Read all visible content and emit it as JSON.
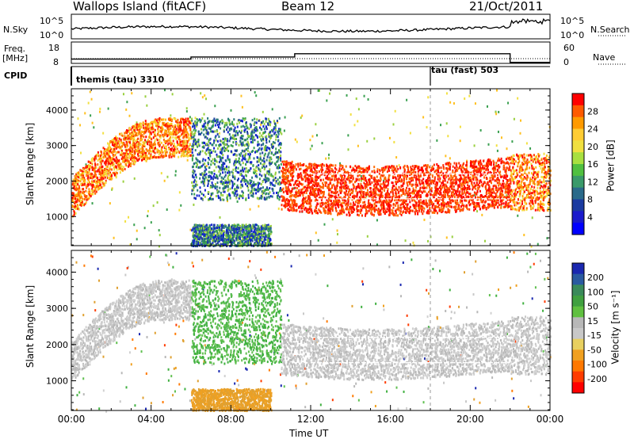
{
  "header": {
    "station": "Wallops Island (fitACF)",
    "beam": "Beam 12",
    "date": "21/Oct/2011"
  },
  "strips": {
    "nsky_label": "N.Sky",
    "nsky_ticks": [
      "10^5",
      "10^0"
    ],
    "nsearch_label": "N.Search",
    "nsearch_ticks": [
      "10^5",
      "10^0"
    ],
    "freq_label": "Freq.",
    "freq_unit": "[MHz]",
    "freq_ticks": [
      "18",
      "8"
    ],
    "nave_label": "Nave",
    "nave_ticks": [
      "60",
      "0"
    ],
    "cpid_label": "CPID",
    "cpid_events": [
      {
        "time": "00:00",
        "label": "themis (tau) 3310"
      },
      {
        "time": "18:00",
        "label": "tau (fast) 503"
      }
    ],
    "freq_steps_mhz": [
      [
        0.0,
        10.0
      ],
      [
        6.0,
        11.0
      ],
      [
        11.2,
        12.5
      ],
      [
        22.0,
        8.5
      ]
    ],
    "nave_steps": [
      [
        0.0,
        10
      ],
      [
        22.0,
        10
      ]
    ]
  },
  "panels": {
    "power": {
      "ylabel": "Slant Range [km]",
      "colorbar_title": "Power [dB]",
      "colorbar_ticks": [
        "28",
        "24",
        "20",
        "16",
        "12",
        "8",
        "4"
      ],
      "colorbar_colors": [
        "#ff0000",
        "#ff5a00",
        "#ff9a00",
        "#ffcc33",
        "#f0e040",
        "#a8e040",
        "#50c040",
        "#3a9a6a",
        "#2a6a8a",
        "#1a3aa0",
        "#1a1acc",
        "#0000ff"
      ]
    },
    "velocity": {
      "ylabel": "Slant Range [km]",
      "colorbar_title": "Velocity [m s⁻¹]",
      "colorbar_ticks": [
        "200",
        "100",
        "50",
        "15",
        "-15",
        "-50",
        "-100",
        "-200"
      ],
      "colorbar_colors": [
        "#1a28b0",
        "#2a5aa0",
        "#3a8a5a",
        "#40a040",
        "#60c040",
        "#b8b8b8",
        "#c8c8c8",
        "#e8d060",
        "#f0a020",
        "#ff7800",
        "#ff3c00",
        "#ff0000"
      ]
    }
  },
  "xaxis": {
    "label": "Time UT",
    "ticks": [
      "00:00",
      "04:00",
      "08:00",
      "12:00",
      "16:00",
      "20:00",
      "00:00"
    ]
  },
  "chart_data": {
    "type": "heatmap",
    "title": "Wallops Island (fitACF) Beam 12 21/Oct/2011",
    "xlabel": "Time UT",
    "ylabel": "Slant Range [km]",
    "x_range_hours": [
      0,
      24
    ],
    "ylim_km": [
      180,
      4600
    ],
    "ytick_values": [
      1000,
      2000,
      3000,
      4000
    ],
    "xtick_values": [
      0,
      4,
      8,
      12,
      16,
      20,
      24
    ],
    "series": [
      {
        "name": "Power [dB]",
        "color_range": [
          0,
          30
        ],
        "regions": [
          {
            "t": [
              0.0,
              6.0
            ],
            "r": [
              1300,
              3900
            ],
            "v": 22
          },
          {
            "t": [
              6.0,
              10.5
            ],
            "r": [
              1500,
              3800
            ],
            "v": 12
          },
          {
            "t": [
              10.5,
              22.0
            ],
            "r": [
              1150,
              2500
            ],
            "v": 26
          },
          {
            "t": [
              22.0,
              24.0
            ],
            "r": [
              1200,
              2800
            ],
            "v": 18
          },
          {
            "t": [
              6.0,
              10.0
            ],
            "r": [
              200,
              800
            ],
            "v": 8
          }
        ]
      },
      {
        "name": "Velocity [m s⁻¹]",
        "color_range": [
          -200,
          200
        ],
        "regions": [
          {
            "t": [
              0.0,
              6.0
            ],
            "r": [
              1300,
              3900
            ],
            "v": -30
          },
          {
            "t": [
              6.0,
              10.5
            ],
            "r": [
              1500,
              3800
            ],
            "v": 60
          },
          {
            "t": [
              10.5,
              22.0
            ],
            "r": [
              1150,
              2500
            ],
            "v": 0
          },
          {
            "t": [
              22.0,
              24.0
            ],
            "r": [
              1200,
              2800
            ],
            "v": -10
          },
          {
            "t": [
              6.0,
              10.0
            ],
            "r": [
              200,
              800
            ],
            "v": -40
          }
        ]
      }
    ]
  }
}
